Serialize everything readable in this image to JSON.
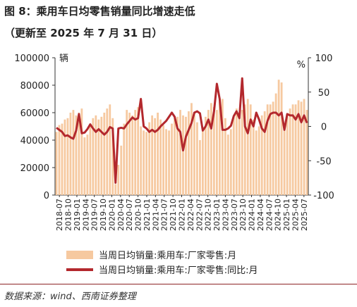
{
  "header": {
    "title": "图 8：乘用车日均零售销量同比增速走低",
    "subtitle": "（更新至 2025 年 7 月 31 日）"
  },
  "source": "数据来源：wind、西南证券整理",
  "colors": {
    "bar": "#f6c9a0",
    "line": "#b3282d",
    "rule": "#8c2426"
  },
  "chart_data": {
    "type": "bar+line",
    "x_tick_labels": [
      "2018-07",
      "2018-10",
      "2019-01",
      "2019-04",
      "2019-07",
      "2019-10",
      "2020-01",
      "2020-04",
      "2020-07",
      "2020-10",
      "2021-01",
      "2021-04",
      "2021-07",
      "2021-10",
      "2022-01",
      "2022-04",
      "2022-07",
      "2022-10",
      "2023-01",
      "2023-04",
      "2023-07",
      "2023-10",
      "2024-01",
      "2024-04",
      "2024-07",
      "2024-10",
      "2025-01",
      "2025-04",
      "2025-07"
    ],
    "left_axis": {
      "unit": "辆",
      "ylim": [
        0,
        100000
      ],
      "ticks": [
        "0",
        "20000",
        "40000",
        "60000",
        "80000",
        "100000"
      ]
    },
    "right_axis": {
      "unit": "%",
      "ylim": [
        -100,
        100
      ],
      "ticks": [
        "-100",
        "-50",
        "0",
        "50",
        "100"
      ]
    },
    "series": [
      {
        "name": "当周日均销量:乘用车:厂家零售:月",
        "type": "bar",
        "axis": "left",
        "values": [
          46000,
          51000,
          52000,
          55000,
          56000,
          60000,
          62000,
          58000,
          60000,
          63000,
          42000,
          44000,
          50000,
          56000,
          58000,
          55000,
          57000,
          60000,
          63000,
          66000,
          56000,
          8000,
          22000,
          36000,
          52000,
          62000,
          60000,
          58000,
          62000,
          64000,
          50000,
          47000,
          46000,
          53000,
          58000,
          56000,
          60000,
          55000,
          51000,
          48000,
          47000,
          52000,
          56000,
          57000,
          62000,
          58000,
          57000,
          61000,
          67000,
          60000,
          53000,
          40000,
          47000,
          57000,
          62000,
          67000,
          64000,
          62000,
          68000,
          70000,
          56000,
          44000,
          48000,
          57000,
          63000,
          60000,
          62000,
          66000,
          70000,
          66000,
          55000,
          47000,
          50000,
          58000,
          61000,
          66000,
          66000,
          68000,
          74000,
          84000,
          82000,
          49000,
          57000,
          63000,
          66000,
          66000,
          69000,
          68000,
          70000,
          62000
        ]
      },
      {
        "name": "当周日均销量:乘用车:厂家零售:同比:月",
        "type": "line",
        "axis": "right",
        "values": [
          -2,
          -5,
          -8,
          -14,
          -13,
          -16,
          -18,
          -6,
          18,
          -10,
          -9,
          -4,
          3,
          -3,
          -8,
          -4,
          -8,
          -12,
          -8,
          -1,
          -3,
          -82,
          -3,
          -2,
          -3,
          3,
          8,
          13,
          10,
          12,
          40,
          0,
          -3,
          -8,
          -5,
          -8,
          -5,
          0,
          4,
          8,
          14,
          20,
          14,
          -3,
          -8,
          -35,
          -15,
          -5,
          5,
          20,
          22,
          19,
          -6,
          0,
          10,
          -3,
          22,
          62,
          40,
          -5,
          -5,
          -3,
          1,
          15,
          22,
          12,
          70,
          0,
          -10,
          10,
          0,
          20,
          10,
          -3,
          -8,
          8,
          18,
          20,
          20,
          16,
          20,
          -5,
          18,
          16,
          16,
          10,
          18,
          6,
          16,
          5
        ]
      }
    ]
  }
}
